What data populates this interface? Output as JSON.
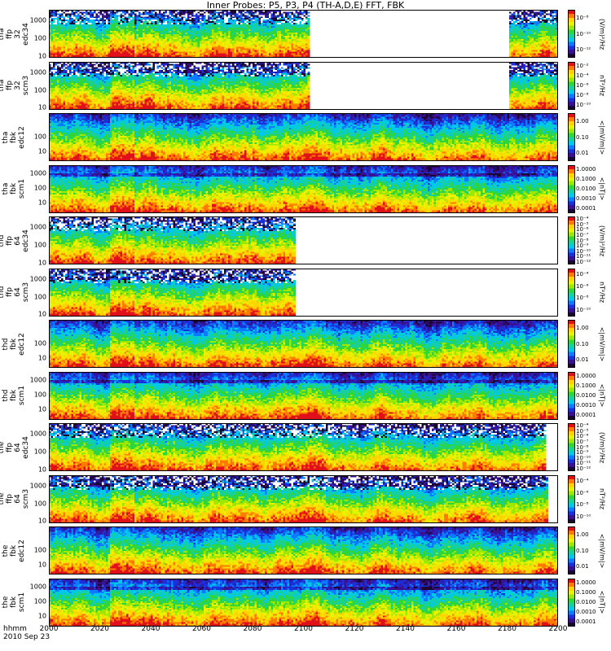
{
  "title": "Inner Probes: P5, P3, P4 (TH-A,D,E) FFT, FBK",
  "x_axis": {
    "header_line1": "hhmm",
    "header_line2": "2010 Sep 23",
    "ticks": [
      "2000",
      "2020",
      "2040",
      "2060",
      "2080",
      "2100",
      "2120",
      "2140",
      "2160",
      "2180",
      "2200"
    ]
  },
  "colorbar_colors": [
    "#ffffff",
    "#e0101a",
    "#ff7a00",
    "#ffd400",
    "#e9f200",
    "#9ee800",
    "#2fd63a",
    "#16d0a0",
    "#00c8e8",
    "#0d7bff",
    "#1a30d8",
    "#3a0f90",
    "#1a0630",
    "#000000"
  ],
  "chart_data": [
    {
      "type": "heatmap",
      "ylabel": [
        "tha",
        "ffp",
        "32",
        "edc34"
      ],
      "yticks": [
        "1000",
        "100",
        "10"
      ],
      "ylim": [
        8,
        4096
      ],
      "yscale": "log",
      "colorbar_ticks": [
        "10⁻⁸",
        "10⁻¹⁰",
        "10⁻¹²"
      ],
      "colorbar_unit": "(V/m)²/Hz",
      "data_coverage": [
        [
          0,
          0.51
        ],
        [
          0.905,
          1.0
        ]
      ]
    },
    {
      "type": "heatmap",
      "ylabel": [
        "tha",
        "ffp",
        "32",
        "scm3"
      ],
      "yticks": [
        "1000",
        "100",
        "10"
      ],
      "ylim": [
        8,
        4096
      ],
      "yscale": "log",
      "colorbar_ticks": [
        "10⁻²",
        "10⁻⁴",
        "10⁻⁶",
        "10⁻⁸",
        "10⁻¹⁰"
      ],
      "colorbar_unit": "nT²/Hz",
      "data_coverage": [
        [
          0,
          0.51
        ],
        [
          0.905,
          1.0
        ]
      ]
    },
    {
      "type": "heatmap",
      "ylabel": [
        "tha",
        "fbk",
        "edc12"
      ],
      "yticks": [
        "100",
        "10"
      ],
      "ylim": [
        2,
        4096
      ],
      "yscale": "log",
      "colorbar_ticks": [
        "1.00",
        "0.10",
        "0.01"
      ],
      "colorbar_unit": "<|mV/m|>",
      "data_coverage": [
        [
          0,
          1.0
        ]
      ]
    },
    {
      "type": "heatmap",
      "ylabel": [
        "tha",
        "fbk",
        "scm1"
      ],
      "yticks": [
        "1000",
        "100",
        "10"
      ],
      "ylim": [
        2,
        4096
      ],
      "yscale": "log",
      "colorbar_ticks": [
        "1.0000",
        "0.1000",
        "0.0100",
        "0.0010",
        "0.0001"
      ],
      "colorbar_unit": "<|nT|>",
      "data_coverage": [
        [
          0,
          1.0
        ]
      ]
    },
    {
      "type": "heatmap",
      "ylabel": [
        "thd",
        "ffp",
        "64",
        "edc34"
      ],
      "yticks": [
        "1000",
        "100",
        "10"
      ],
      "ylim": [
        8,
        4096
      ],
      "yscale": "log",
      "colorbar_ticks": [
        "10⁻⁴",
        "10⁻⁵",
        "10⁻⁶",
        "10⁻⁷",
        "10⁻⁸",
        "10⁻⁹",
        "10⁻¹⁰",
        "10⁻¹¹",
        "10⁻¹²"
      ],
      "colorbar_unit": "(V/m)²/Hz",
      "data_coverage": [
        [
          0,
          0.485
        ]
      ]
    },
    {
      "type": "heatmap",
      "ylabel": [
        "thd",
        "ffp",
        "64",
        "scm3"
      ],
      "yticks": [
        "1000",
        "100",
        "10"
      ],
      "ylim": [
        8,
        4096
      ],
      "yscale": "log",
      "colorbar_ticks": [
        "10⁻⁴",
        "10⁻⁶",
        "10⁻⁸",
        "10⁻¹⁰"
      ],
      "colorbar_unit": "nT²/Hz",
      "data_coverage": [
        [
          0,
          0.485
        ]
      ]
    },
    {
      "type": "heatmap",
      "ylabel": [
        "thd",
        "fbk",
        "edc12"
      ],
      "yticks": [
        "100",
        "10"
      ],
      "ylim": [
        2,
        4096
      ],
      "yscale": "log",
      "colorbar_ticks": [
        "1.00",
        "0.10",
        "0.01"
      ],
      "colorbar_unit": "<|mV/m|>",
      "data_coverage": [
        [
          0,
          1.0
        ]
      ]
    },
    {
      "type": "heatmap",
      "ylabel": [
        "thd",
        "fbk",
        "scm1"
      ],
      "yticks": [
        "1000",
        "100",
        "10"
      ],
      "ylim": [
        2,
        4096
      ],
      "yscale": "log",
      "colorbar_ticks": [
        "1.0000",
        "0.1000",
        "0.0100",
        "0.0010",
        "0.0001"
      ],
      "colorbar_unit": "<|nT|>",
      "data_coverage": [
        [
          0,
          1.0
        ]
      ]
    },
    {
      "type": "heatmap",
      "ylabel": [
        "the",
        "ffp",
        "64",
        "edc34"
      ],
      "yticks": [
        "1000",
        "100",
        "10"
      ],
      "ylim": [
        8,
        4096
      ],
      "yscale": "log",
      "colorbar_ticks": [
        "10⁻⁴",
        "10⁻⁵",
        "10⁻⁶",
        "10⁻⁷",
        "10⁻⁸",
        "10⁻⁹",
        "10⁻¹⁰",
        "10⁻¹¹",
        "10⁻¹²"
      ],
      "colorbar_unit": "(V/m)²/Hz",
      "data_coverage": [
        [
          0,
          0.975
        ]
      ]
    },
    {
      "type": "heatmap",
      "ylabel": [
        "the",
        "ffp",
        "64",
        "scm3"
      ],
      "yticks": [
        "1000",
        "100",
        "10"
      ],
      "ylim": [
        8,
        4096
      ],
      "yscale": "log",
      "colorbar_ticks": [
        "10⁻⁴",
        "10⁻⁶",
        "10⁻⁸",
        "10⁻¹⁰"
      ],
      "colorbar_unit": "nT²/Hz",
      "data_coverage": [
        [
          0,
          0.98
        ]
      ]
    },
    {
      "type": "heatmap",
      "ylabel": [
        "the",
        "fbk",
        "edc12"
      ],
      "yticks": [
        "100",
        "10"
      ],
      "ylim": [
        2,
        4096
      ],
      "yscale": "log",
      "colorbar_ticks": [
        "1.00",
        "0.10",
        "0.01"
      ],
      "colorbar_unit": "<|mV/m|>",
      "data_coverage": [
        [
          0,
          1.0
        ]
      ]
    },
    {
      "type": "heatmap",
      "ylabel": [
        "the",
        "fbk",
        "scm1"
      ],
      "yticks": [
        "1000",
        "100",
        "10"
      ],
      "ylim": [
        2,
        4096
      ],
      "yscale": "log",
      "colorbar_ticks": [
        "1.0000",
        "0.1000",
        "0.0100",
        "0.0010",
        "0.0001"
      ],
      "colorbar_unit": "<|nT|>",
      "data_coverage": [
        [
          0,
          1.0
        ]
      ]
    }
  ]
}
